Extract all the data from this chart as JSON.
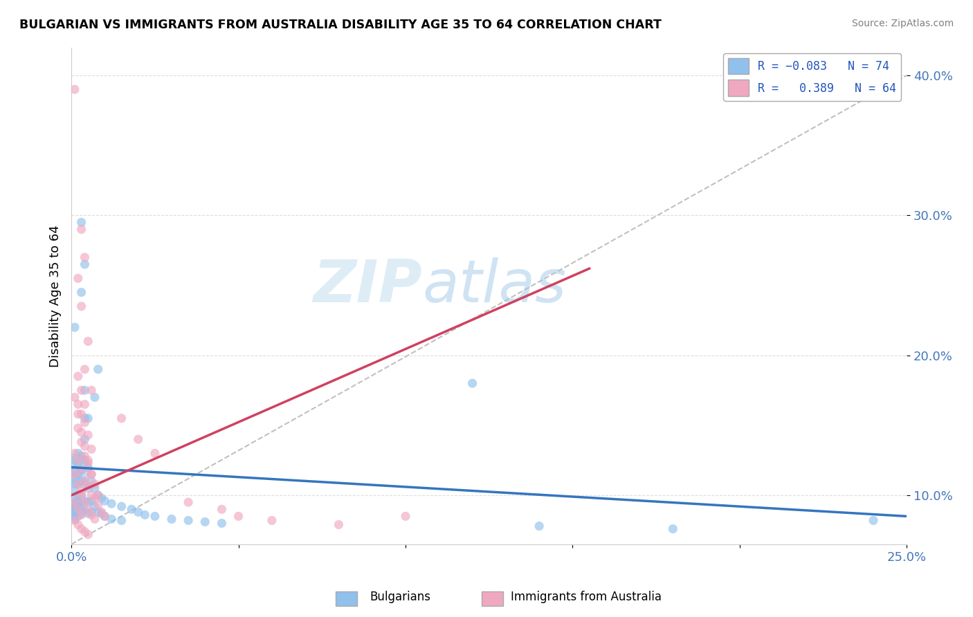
{
  "title": "BULGARIAN VS IMMIGRANTS FROM AUSTRALIA DISABILITY AGE 35 TO 64 CORRELATION CHART",
  "source": "Source: ZipAtlas.com",
  "ylabel_label": "Disability Age 35 to 64",
  "xmin": 0.0,
  "xmax": 0.25,
  "ymin": 0.065,
  "ymax": 0.42,
  "yticks": [
    0.1,
    0.2,
    0.3,
    0.4
  ],
  "ytick_labels": [
    "10.0%",
    "20.0%",
    "30.0%",
    "40.0%"
  ],
  "xtick_positions": [
    0.0,
    0.05,
    0.1,
    0.15,
    0.2,
    0.25
  ],
  "xtick_labels": [
    "0.0%",
    "",
    "",
    "",
    "",
    "25.0%"
  ],
  "watermark_zip": "ZIP",
  "watermark_atlas": "atlas",
  "blue_scatter": [
    [
      0.001,
      0.125
    ],
    [
      0.001,
      0.118
    ],
    [
      0.001,
      0.113
    ],
    [
      0.001,
      0.108
    ],
    [
      0.001,
      0.103
    ],
    [
      0.001,
      0.098
    ],
    [
      0.001,
      0.095
    ],
    [
      0.001,
      0.093
    ],
    [
      0.001,
      0.091
    ],
    [
      0.001,
      0.089
    ],
    [
      0.001,
      0.087
    ],
    [
      0.001,
      0.085
    ],
    [
      0.001,
      0.083
    ],
    [
      0.002,
      0.13
    ],
    [
      0.002,
      0.122
    ],
    [
      0.002,
      0.115
    ],
    [
      0.002,
      0.108
    ],
    [
      0.002,
      0.1
    ],
    [
      0.002,
      0.095
    ],
    [
      0.002,
      0.092
    ],
    [
      0.002,
      0.089
    ],
    [
      0.002,
      0.085
    ],
    [
      0.003,
      0.128
    ],
    [
      0.003,
      0.118
    ],
    [
      0.003,
      0.11
    ],
    [
      0.003,
      0.1
    ],
    [
      0.003,
      0.095
    ],
    [
      0.003,
      0.09
    ],
    [
      0.003,
      0.087
    ],
    [
      0.004,
      0.125
    ],
    [
      0.004,
      0.108
    ],
    [
      0.004,
      0.096
    ],
    [
      0.004,
      0.089
    ],
    [
      0.005,
      0.12
    ],
    [
      0.005,
      0.105
    ],
    [
      0.005,
      0.095
    ],
    [
      0.005,
      0.087
    ],
    [
      0.006,
      0.11
    ],
    [
      0.006,
      0.096
    ],
    [
      0.006,
      0.088
    ],
    [
      0.007,
      0.105
    ],
    [
      0.007,
      0.092
    ],
    [
      0.008,
      0.1
    ],
    [
      0.008,
      0.088
    ],
    [
      0.009,
      0.098
    ],
    [
      0.009,
      0.087
    ],
    [
      0.01,
      0.096
    ],
    [
      0.01,
      0.085
    ],
    [
      0.012,
      0.094
    ],
    [
      0.012,
      0.083
    ],
    [
      0.015,
      0.092
    ],
    [
      0.015,
      0.082
    ],
    [
      0.018,
      0.09
    ],
    [
      0.02,
      0.088
    ],
    [
      0.022,
      0.086
    ],
    [
      0.025,
      0.085
    ],
    [
      0.03,
      0.083
    ],
    [
      0.035,
      0.082
    ],
    [
      0.04,
      0.081
    ],
    [
      0.045,
      0.08
    ],
    [
      0.003,
      0.295
    ],
    [
      0.004,
      0.265
    ],
    [
      0.003,
      0.245
    ],
    [
      0.004,
      0.175
    ],
    [
      0.004,
      0.155
    ],
    [
      0.004,
      0.14
    ],
    [
      0.005,
      0.155
    ],
    [
      0.007,
      0.17
    ],
    [
      0.008,
      0.19
    ],
    [
      0.001,
      0.22
    ],
    [
      0.12,
      0.18
    ],
    [
      0.24,
      0.082
    ],
    [
      0.14,
      0.078
    ],
    [
      0.18,
      0.076
    ]
  ],
  "pink_scatter": [
    [
      0.001,
      0.39
    ],
    [
      0.003,
      0.29
    ],
    [
      0.004,
      0.27
    ],
    [
      0.002,
      0.255
    ],
    [
      0.003,
      0.235
    ],
    [
      0.005,
      0.21
    ],
    [
      0.004,
      0.19
    ],
    [
      0.006,
      0.175
    ],
    [
      0.002,
      0.165
    ],
    [
      0.003,
      0.158
    ],
    [
      0.004,
      0.152
    ],
    [
      0.002,
      0.148
    ],
    [
      0.005,
      0.143
    ],
    [
      0.003,
      0.138
    ],
    [
      0.006,
      0.133
    ],
    [
      0.004,
      0.128
    ],
    [
      0.005,
      0.123
    ],
    [
      0.003,
      0.118
    ],
    [
      0.006,
      0.115
    ],
    [
      0.004,
      0.11
    ],
    [
      0.005,
      0.107
    ],
    [
      0.003,
      0.103
    ],
    [
      0.006,
      0.1
    ],
    [
      0.007,
      0.098
    ],
    [
      0.004,
      0.095
    ],
    [
      0.008,
      0.093
    ],
    [
      0.005,
      0.09
    ],
    [
      0.009,
      0.088
    ],
    [
      0.006,
      0.086
    ],
    [
      0.01,
      0.085
    ],
    [
      0.007,
      0.083
    ],
    [
      0.001,
      0.13
    ],
    [
      0.002,
      0.125
    ],
    [
      0.001,
      0.115
    ],
    [
      0.002,
      0.108
    ],
    [
      0.003,
      0.1
    ],
    [
      0.001,
      0.095
    ],
    [
      0.002,
      0.09
    ],
    [
      0.003,
      0.086
    ],
    [
      0.001,
      0.082
    ],
    [
      0.002,
      0.079
    ],
    [
      0.003,
      0.076
    ],
    [
      0.004,
      0.074
    ],
    [
      0.005,
      0.072
    ],
    [
      0.001,
      0.17
    ],
    [
      0.002,
      0.158
    ],
    [
      0.003,
      0.145
    ],
    [
      0.004,
      0.135
    ],
    [
      0.005,
      0.125
    ],
    [
      0.006,
      0.115
    ],
    [
      0.007,
      0.108
    ],
    [
      0.008,
      0.1
    ],
    [
      0.002,
      0.185
    ],
    [
      0.003,
      0.175
    ],
    [
      0.004,
      0.165
    ],
    [
      0.015,
      0.155
    ],
    [
      0.02,
      0.14
    ],
    [
      0.025,
      0.13
    ],
    [
      0.05,
      0.085
    ],
    [
      0.06,
      0.082
    ],
    [
      0.1,
      0.085
    ],
    [
      0.08,
      0.079
    ],
    [
      0.035,
      0.095
    ],
    [
      0.045,
      0.09
    ]
  ],
  "blue_scatter_big": [
    [
      0.001,
      0.118
    ]
  ],
  "blue_line_x": [
    0.0,
    0.25
  ],
  "blue_line_y": [
    0.12,
    0.085
  ],
  "pink_line_x": [
    0.0,
    0.155
  ],
  "pink_line_y": [
    0.1,
    0.262
  ],
  "dashed_line_x": [
    0.0,
    0.25
  ],
  "dashed_line_y": [
    0.065,
    0.4
  ],
  "blue_color": "#90C0EC",
  "pink_color": "#F0A8C0",
  "blue_line_color": "#3575C0",
  "pink_line_color": "#D04060",
  "dashed_line_color": "#C0C0C0",
  "big_dot_size": 1200,
  "dot_size": 90
}
